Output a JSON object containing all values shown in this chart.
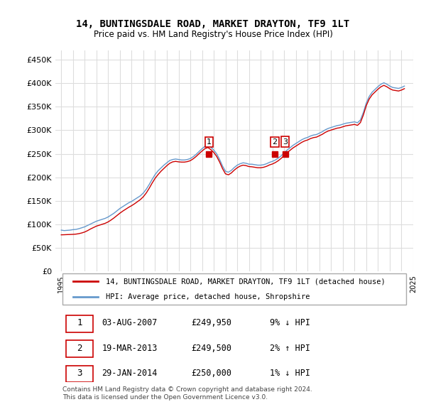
{
  "title": "14, BUNTINGSDALE ROAD, MARKET DRAYTON, TF9 1LT",
  "subtitle": "Price paid vs. HM Land Registry's House Price Index (HPI)",
  "ylabel_values": [
    "£0",
    "£50K",
    "£100K",
    "£150K",
    "£200K",
    "£250K",
    "£300K",
    "£350K",
    "£400K",
    "£450K"
  ],
  "ylim": [
    0,
    470000
  ],
  "yticks": [
    0,
    50000,
    100000,
    150000,
    200000,
    250000,
    300000,
    350000,
    400000,
    450000
  ],
  "red_line_label": "14, BUNTINGSDALE ROAD, MARKET DRAYTON, TF9 1LT (detached house)",
  "blue_line_label": "HPI: Average price, detached house, Shropshire",
  "sale_points": [
    {
      "label": "1",
      "year": 2007.59,
      "price": 249950
    },
    {
      "label": "2",
      "year": 2013.21,
      "price": 249500
    },
    {
      "label": "3",
      "year": 2014.08,
      "price": 250000
    }
  ],
  "table_rows": [
    {
      "num": "1",
      "date": "03-AUG-2007",
      "price": "£249,950",
      "hpi": "9% ↓ HPI"
    },
    {
      "num": "2",
      "date": "19-MAR-2013",
      "price": "£249,500",
      "hpi": "2% ↑ HPI"
    },
    {
      "num": "3",
      "date": "29-JAN-2014",
      "price": "£250,000",
      "hpi": "1% ↓ HPI"
    }
  ],
  "footer": "Contains HM Land Registry data © Crown copyright and database right 2024.\nThis data is licensed under the Open Government Licence v3.0.",
  "red_color": "#cc0000",
  "blue_color": "#6699cc",
  "background_color": "#ffffff",
  "grid_color": "#dddddd",
  "hpi_data": {
    "years": [
      1995.0,
      1995.25,
      1995.5,
      1995.75,
      1996.0,
      1996.25,
      1996.5,
      1996.75,
      1997.0,
      1997.25,
      1997.5,
      1997.75,
      1998.0,
      1998.25,
      1998.5,
      1998.75,
      1999.0,
      1999.25,
      1999.5,
      1999.75,
      2000.0,
      2000.25,
      2000.5,
      2000.75,
      2001.0,
      2001.25,
      2001.5,
      2001.75,
      2002.0,
      2002.25,
      2002.5,
      2002.75,
      2003.0,
      2003.25,
      2003.5,
      2003.75,
      2004.0,
      2004.25,
      2004.5,
      2004.75,
      2005.0,
      2005.25,
      2005.5,
      2005.75,
      2006.0,
      2006.25,
      2006.5,
      2006.75,
      2007.0,
      2007.25,
      2007.5,
      2007.75,
      2008.0,
      2008.25,
      2008.5,
      2008.75,
      2009.0,
      2009.25,
      2009.5,
      2009.75,
      2010.0,
      2010.25,
      2010.5,
      2010.75,
      2011.0,
      2011.25,
      2011.5,
      2011.75,
      2012.0,
      2012.25,
      2012.5,
      2012.75,
      2013.0,
      2013.25,
      2013.5,
      2013.75,
      2014.0,
      2014.25,
      2014.5,
      2014.75,
      2015.0,
      2015.25,
      2015.5,
      2015.75,
      2016.0,
      2016.25,
      2016.5,
      2016.75,
      2017.0,
      2017.25,
      2017.5,
      2017.75,
      2018.0,
      2018.25,
      2018.5,
      2018.75,
      2019.0,
      2019.25,
      2019.5,
      2019.75,
      2020.0,
      2020.25,
      2020.5,
      2020.75,
      2021.0,
      2021.25,
      2021.5,
      2021.75,
      2022.0,
      2022.25,
      2022.5,
      2022.75,
      2023.0,
      2023.25,
      2023.5,
      2023.75,
      2024.0,
      2024.25
    ],
    "hpi_values": [
      88000,
      87000,
      87500,
      88000,
      89000,
      89500,
      91000,
      93000,
      95000,
      98000,
      101000,
      104000,
      107000,
      109000,
      111000,
      113000,
      116000,
      120000,
      124000,
      129000,
      134000,
      138000,
      142000,
      146000,
      149000,
      153000,
      157000,
      161000,
      167000,
      175000,
      185000,
      196000,
      206000,
      214000,
      220000,
      226000,
      231000,
      236000,
      238000,
      239000,
      238000,
      237000,
      237000,
      238000,
      240000,
      244000,
      249000,
      255000,
      261000,
      266000,
      268000,
      264000,
      258000,
      250000,
      238000,
      224000,
      213000,
      211000,
      215000,
      221000,
      226000,
      229000,
      231000,
      230000,
      228000,
      228000,
      227000,
      226000,
      226000,
      227000,
      229000,
      232000,
      234000,
      237000,
      241000,
      246000,
      252000,
      258000,
      263000,
      268000,
      272000,
      276000,
      280000,
      283000,
      285000,
      288000,
      290000,
      291000,
      294000,
      297000,
      301000,
      304000,
      306000,
      308000,
      310000,
      311000,
      313000,
      315000,
      316000,
      317000,
      318000,
      316000,
      322000,
      338000,
      358000,
      372000,
      381000,
      387000,
      393000,
      398000,
      401000,
      398000,
      394000,
      391000,
      390000,
      389000,
      391000,
      394000
    ],
    "price_paid": [
      78000,
      78200,
      78500,
      78700,
      79000,
      79500,
      80500,
      82000,
      84000,
      87000,
      90500,
      93500,
      96500,
      98500,
      100500,
      102500,
      105500,
      109500,
      114000,
      119000,
      124000,
      128500,
      132500,
      136500,
      140000,
      144000,
      148500,
      153000,
      159000,
      167000,
      177000,
      188000,
      198000,
      206000,
      213000,
      219000,
      225000,
      230000,
      233000,
      234000,
      233000,
      232500,
      232500,
      233500,
      235500,
      239500,
      244500,
      250500,
      256000,
      261000,
      263500,
      259000,
      253000,
      244500,
      232500,
      218500,
      207500,
      205500,
      209500,
      215500,
      220500,
      224000,
      226000,
      225000,
      223000,
      222500,
      221500,
      220500,
      220500,
      221500,
      223500,
      226500,
      228500,
      231500,
      235500,
      240500,
      246500,
      252500,
      257500,
      262500,
      266500,
      270500,
      274500,
      277500,
      279500,
      282500,
      284500,
      285500,
      288500,
      291500,
      295500,
      298500,
      300500,
      302500,
      304500,
      305500,
      307500,
      309500,
      310500,
      311500,
      312500,
      310500,
      316500,
      332500,
      352500,
      366500,
      375500,
      381500,
      387500,
      392500,
      395500,
      392500,
      388500,
      385500,
      384500,
      383500,
      385500,
      388500
    ]
  }
}
